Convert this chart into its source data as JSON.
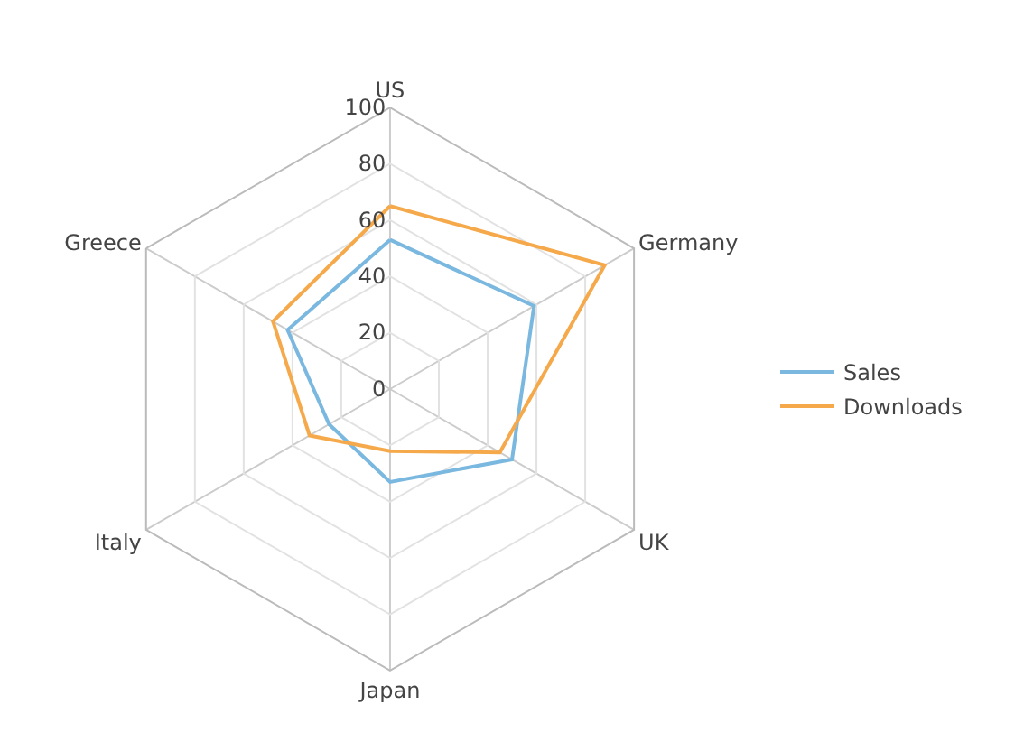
{
  "chart_data": {
    "type": "radar",
    "categories": [
      "US",
      "Germany",
      "UK",
      "Japan",
      "Italy",
      "Greece"
    ],
    "series": [
      {
        "name": "Sales",
        "color": "#7ab8e0",
        "values": [
          53,
          59,
          50,
          33,
          25,
          42
        ]
      },
      {
        "name": "Downloads",
        "color": "#f5a94a",
        "values": [
          65,
          88,
          45,
          22,
          33,
          48
        ]
      }
    ],
    "ylim": [
      0,
      100
    ],
    "yticks": [
      0,
      20,
      40,
      60,
      80,
      100
    ],
    "grid": true,
    "legend": "right",
    "marker": "none",
    "line_style": "solid"
  }
}
